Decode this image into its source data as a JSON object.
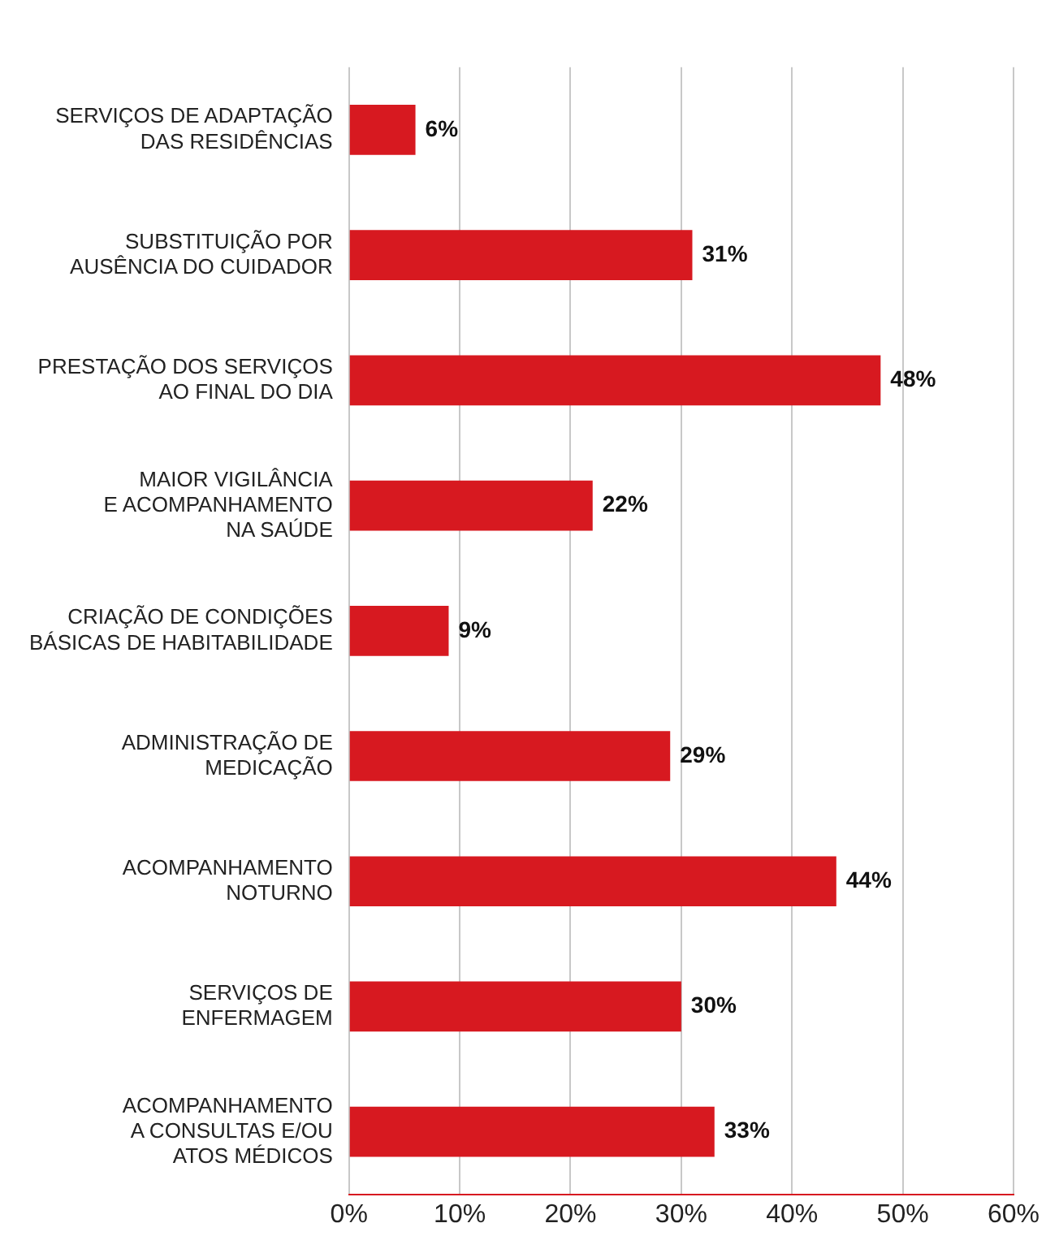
{
  "chart_data": {
    "type": "bar",
    "orientation": "horizontal",
    "categories": [
      "SERVIÇOS DE ADAPTAÇÃO\nDAS RESIDÊNCIAS",
      "SUBSTITUIÇÃO POR\nAUSÊNCIA DO CUIDADOR",
      "PRESTAÇÃO DOS SERVIÇOS\nAO FINAL DO DIA",
      "MAIOR VIGILÂNCIA\nE ACOMPANHAMENTO\nNA SAÚDE",
      "CRIAÇÃO DE CONDIÇÕES\nBÁSICAS DE HABITABILIDADE",
      "ADMINISTRAÇÃO DE\nMEDICAÇÃO",
      "ACOMPANHAMENTO\nNOTURNO",
      "SERVIÇOS DE\nENFERMAGEM",
      "ACOMPANHAMENTO\nA CONSULTAS E/OU\nATOS MÉDICOS"
    ],
    "values": [
      6,
      31,
      48,
      22,
      9,
      29,
      44,
      30,
      33
    ],
    "value_labels": [
      "6%",
      "31%",
      "48%",
      "22%",
      "9%",
      "29%",
      "44%",
      "30%",
      "33%"
    ],
    "color": "#d71920",
    "xlim": [
      0,
      60
    ],
    "xticks": [
      {
        "value": 0,
        "label": "0%"
      },
      {
        "value": 10,
        "label": "10%"
      },
      {
        "value": 20,
        "label": "20%"
      },
      {
        "value": 30,
        "label": "30%"
      },
      {
        "value": 40,
        "label": "40%"
      },
      {
        "value": 50,
        "label": "50%"
      },
      {
        "value": 60,
        "label": "60%"
      }
    ],
    "grid": "x",
    "legend": false
  }
}
